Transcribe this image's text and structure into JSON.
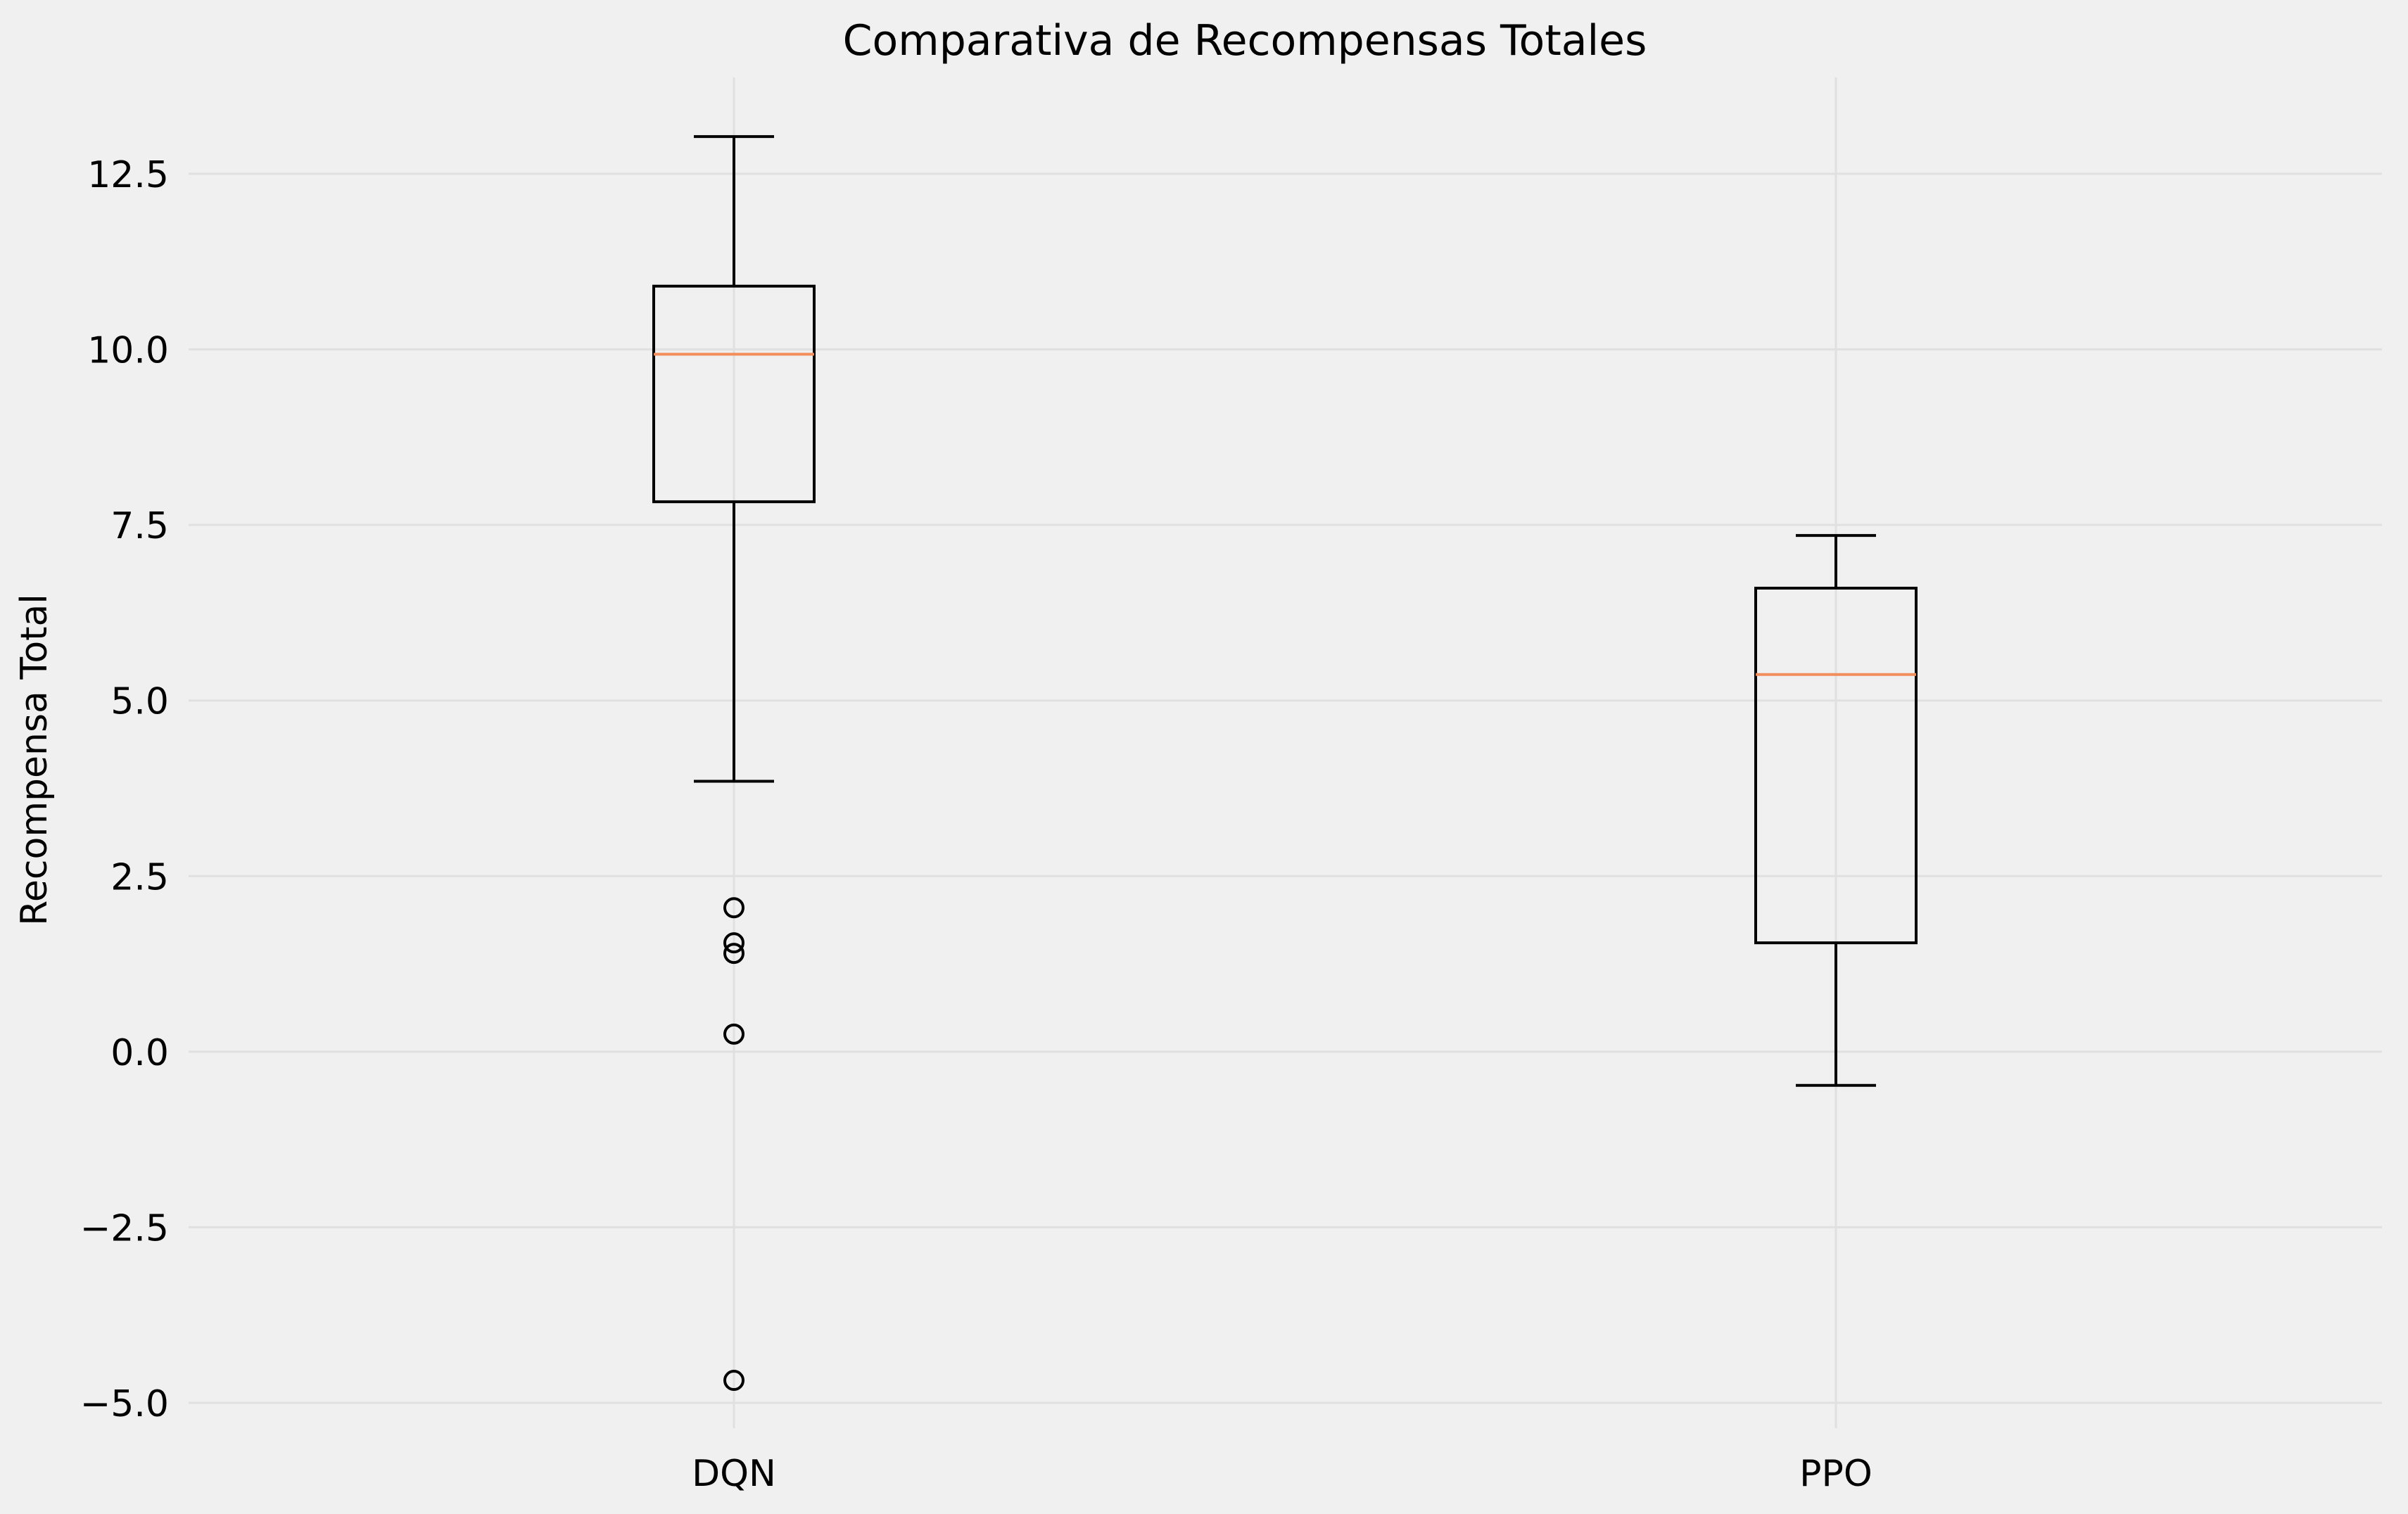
{
  "chart_data": {
    "type": "boxplot",
    "title": "Comparativa de Recompensas Totales",
    "xlabel": "",
    "ylabel": "Recompensa Total",
    "categories": [
      "DQN",
      "PPO"
    ],
    "boxes": [
      {
        "category": "DQN",
        "whisker_low": 3.85,
        "q1": 7.83,
        "median": 9.93,
        "q3": 10.9,
        "whisker_high": 13.03,
        "outliers": [
          2.05,
          1.55,
          1.4,
          0.25,
          -4.68
        ]
      },
      {
        "category": "PPO",
        "whisker_low": -0.48,
        "q1": 1.55,
        "median": 5.37,
        "q3": 6.6,
        "whisker_high": 7.35,
        "outliers": []
      }
    ],
    "ylim": [
      -5.5,
      13.8
    ],
    "yticks": [
      -5.0,
      -2.5,
      0.0,
      2.5,
      5.0,
      7.5,
      10.0,
      12.5
    ],
    "ytick_labels": [
      "−5.0",
      "−2.5",
      "0.0",
      "2.5",
      "5.0",
      "7.5",
      "10.0",
      "12.5"
    ],
    "grid": true,
    "colors": {
      "background": "#f0f0f0",
      "grid": "#e0e0e0",
      "box": "#000000",
      "median": "#f28e5c",
      "text": "#000000"
    }
  }
}
